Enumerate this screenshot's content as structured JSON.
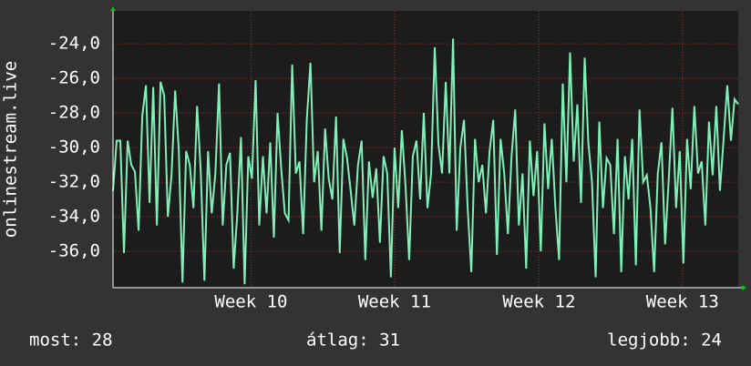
{
  "chart_data": {
    "type": "line",
    "y_label": "onlinestream.live",
    "x": [
      0,
      1,
      2,
      3,
      4,
      5,
      6,
      7,
      8,
      9,
      10,
      11,
      12,
      13,
      14,
      15,
      16,
      17,
      18,
      19,
      20,
      21,
      22,
      23,
      24,
      25,
      26,
      27,
      28,
      29,
      30,
      31,
      32,
      33,
      34,
      35,
      36,
      37,
      38,
      39,
      40,
      41,
      42,
      43,
      44,
      45,
      46,
      47,
      48,
      49,
      50,
      51,
      52,
      53,
      54,
      55,
      56,
      57,
      58,
      59,
      60,
      61,
      62,
      63,
      64,
      65,
      66,
      67,
      68,
      69,
      70,
      71,
      72,
      73,
      74,
      75,
      76,
      77,
      78,
      79,
      80,
      81,
      82,
      83,
      84,
      85,
      86,
      87,
      88,
      89,
      90,
      91,
      92,
      93,
      94,
      95,
      96,
      97,
      98,
      99,
      100,
      101,
      102,
      103,
      104,
      105,
      106,
      107,
      108,
      109,
      110,
      111,
      112,
      113,
      114,
      115,
      116,
      117,
      118,
      119,
      120,
      121,
      122,
      123,
      124,
      125,
      126,
      127,
      128,
      129,
      130,
      131,
      132,
      133,
      134,
      135,
      136,
      137,
      138,
      139,
      140,
      141,
      142,
      143,
      144,
      145,
      146,
      147,
      148,
      149,
      150,
      151,
      152,
      153,
      154,
      155,
      156,
      157,
      158,
      159,
      160,
      161,
      162,
      163,
      164,
      165,
      166,
      167,
      168,
      169,
      170,
      171
    ],
    "series": [
      {
        "color": "#80f0b8",
        "values": [
          -32.5,
          -29.6,
          -29.6,
          -36.1,
          -29.6,
          -31,
          -31.4,
          -34.8,
          -28.2,
          -26.4,
          -33.2,
          -26.5,
          -34.5,
          -26.2,
          -27,
          -34,
          -31.6,
          -26.7,
          -30.2,
          -37.8,
          -30.2,
          -31,
          -33.5,
          -27.6,
          -31.4,
          -37.7,
          -30.2,
          -33.8,
          -31.5,
          -26.3,
          -34.5,
          -31,
          -30.3,
          -37,
          -33.8,
          -29.4,
          -37.9,
          -30.5,
          -31.8,
          -26.1,
          -34.5,
          -30.5,
          -33.8,
          -29.7,
          -35.2,
          -28,
          -31.2,
          -33.8,
          -34.2,
          -25.2,
          -31.5,
          -30.8,
          -35,
          -28.4,
          -25.1,
          -32,
          -30.2,
          -34.8,
          -28.9,
          -31.8,
          -33,
          -28.2,
          -36.1,
          -29.5,
          -30.6,
          -32.5,
          -34.5,
          -31,
          -29.6,
          -36.5,
          -30.8,
          -32.9,
          -31.2,
          -35.5,
          -30.5,
          -31.5,
          -37.5,
          -30,
          -33.5,
          -29,
          -32.2,
          -36.5,
          -30.5,
          -29.6,
          -33,
          -28,
          -33.5,
          -31.5,
          -24.2,
          -29.8,
          -31.5,
          -26.2,
          -31.5,
          -23.7,
          -34.8,
          -30,
          -28.4,
          -33.5,
          -37.2,
          -29.5,
          -32,
          -31,
          -33.8,
          -30.2,
          -28.4,
          -36.2,
          -29.5,
          -31.5,
          -35,
          -30.5,
          -27.8,
          -34.5,
          -31.5,
          -37,
          -29.6,
          -32.8,
          -30.2,
          -36,
          -28.6,
          -32.4,
          -29.5,
          -33.5,
          -36.5,
          -26.3,
          -32,
          -24.5,
          -30.8,
          -27.5,
          -33.2,
          -24.8,
          -29.7,
          -32,
          -37.5,
          -28.5,
          -33.5,
          -30.6,
          -31,
          -35,
          -29.5,
          -37.2,
          -30.5,
          -33,
          -29.5,
          -36.8,
          -27.8,
          -32,
          -31.6,
          -33.5,
          -37.2,
          -31.5,
          -29.7,
          -35.6,
          -31.8,
          -27.7,
          -33.5,
          -30.2,
          -36.7,
          -29.5,
          -32.4,
          -27.6,
          -31.5,
          -30.8,
          -34.5,
          -28.5,
          -31.6,
          -27.6,
          -32.5,
          -29.5,
          -26.4,
          -29.6,
          -27.2,
          -27.5
        ]
      }
    ],
    "xlim": [
      0,
      171
    ],
    "xticks": [
      {
        "value": 37.75,
        "label": "Week 10"
      },
      {
        "value": 77,
        "label": "Week 11"
      },
      {
        "value": 116.5,
        "label": "Week 12"
      },
      {
        "value": 155.75,
        "label": "Week 13"
      }
    ],
    "ylim": [
      -38.1,
      -22.1
    ],
    "yticks": [
      {
        "value": -24,
        "label": "-24,0"
      },
      {
        "value": -26,
        "label": "-26,0"
      },
      {
        "value": -28,
        "label": "-28,0"
      },
      {
        "value": -30,
        "label": "-30,0"
      },
      {
        "value": -32,
        "label": "-32,0"
      },
      {
        "value": -34,
        "label": "-34,0"
      },
      {
        "value": -36,
        "label": "-36,0"
      }
    ],
    "grid": true,
    "footer": [
      "most: 28",
      "átlag: 31",
      "legjobb: 24"
    ]
  }
}
